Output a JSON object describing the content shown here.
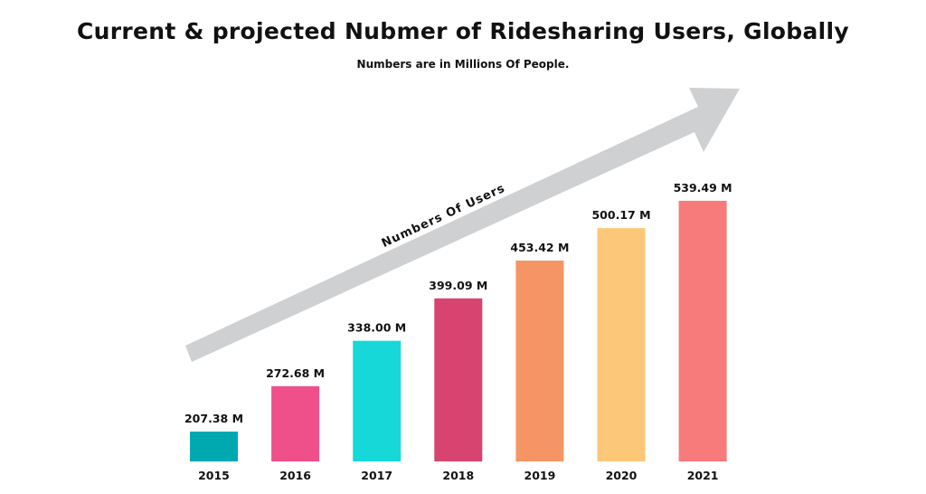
{
  "chart_data": {
    "type": "bar",
    "title": "Current & projected Nubmer of Ridesharing Users, Globally",
    "subtitle": "Numbers are in Millions Of People.",
    "annotation": "Numbers Of Users",
    "categories": [
      "2015",
      "2016",
      "2017",
      "2018",
      "2019",
      "2020",
      "2021"
    ],
    "values": [
      207.38,
      272.68,
      338.0,
      399.09,
      453.42,
      500.17,
      539.49
    ],
    "data_labels": [
      "207.38 M",
      "272.68 M",
      "338.00 M",
      "399.09 M",
      "453.42 M",
      "500.17 M",
      "539.49 M"
    ],
    "colors": [
      "#00a9b0",
      "#f0508a",
      "#16d8d8",
      "#d6446f",
      "#f59565",
      "#fcc778",
      "#f77b7b"
    ],
    "arrow_color": "#cfd0d2",
    "grid": false,
    "legend": "none",
    "xlabel": "",
    "ylabel": ""
  }
}
